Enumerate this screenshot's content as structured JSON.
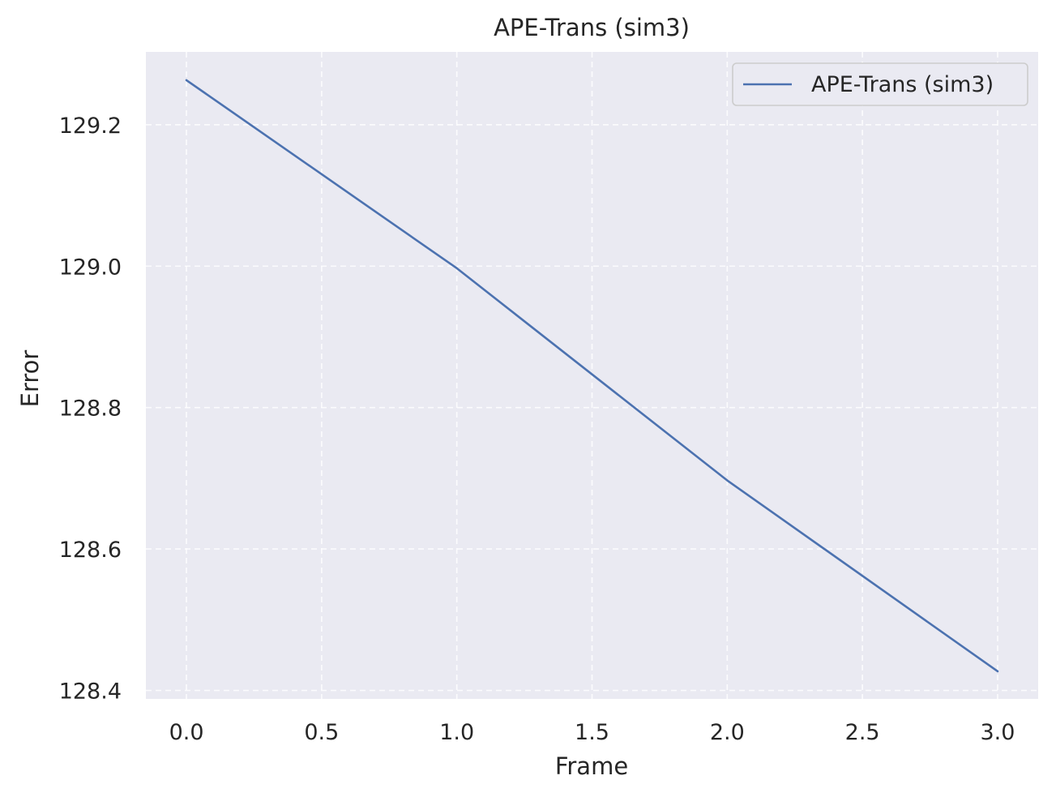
{
  "chart_data": {
    "type": "line",
    "title": "APE-Trans (sim3)",
    "xlabel": "Frame",
    "ylabel": "Error",
    "x": [
      0,
      1,
      2,
      3
    ],
    "series": [
      {
        "name": "APE-Trans (sim3)",
        "values": [
          129.263,
          128.997,
          128.697,
          128.427
        ],
        "color": "#4c72b0"
      }
    ],
    "xlim": [
      -0.15,
      3.15
    ],
    "ylim": [
      128.388,
      129.303
    ],
    "xticks": [
      0.0,
      0.5,
      1.0,
      1.5,
      2.0,
      2.5,
      3.0
    ],
    "xtick_labels": [
      "0.0",
      "0.5",
      "1.0",
      "1.5",
      "2.0",
      "2.5",
      "3.0"
    ],
    "yticks": [
      128.4,
      128.6,
      128.8,
      129.0,
      129.2
    ],
    "ytick_labels": [
      "128.4",
      "128.6",
      "128.8",
      "129.0",
      "129.2"
    ],
    "grid": true,
    "legend_position": "top-right",
    "plot_background": "#eaeaf2",
    "grid_color": "#ffffff"
  }
}
